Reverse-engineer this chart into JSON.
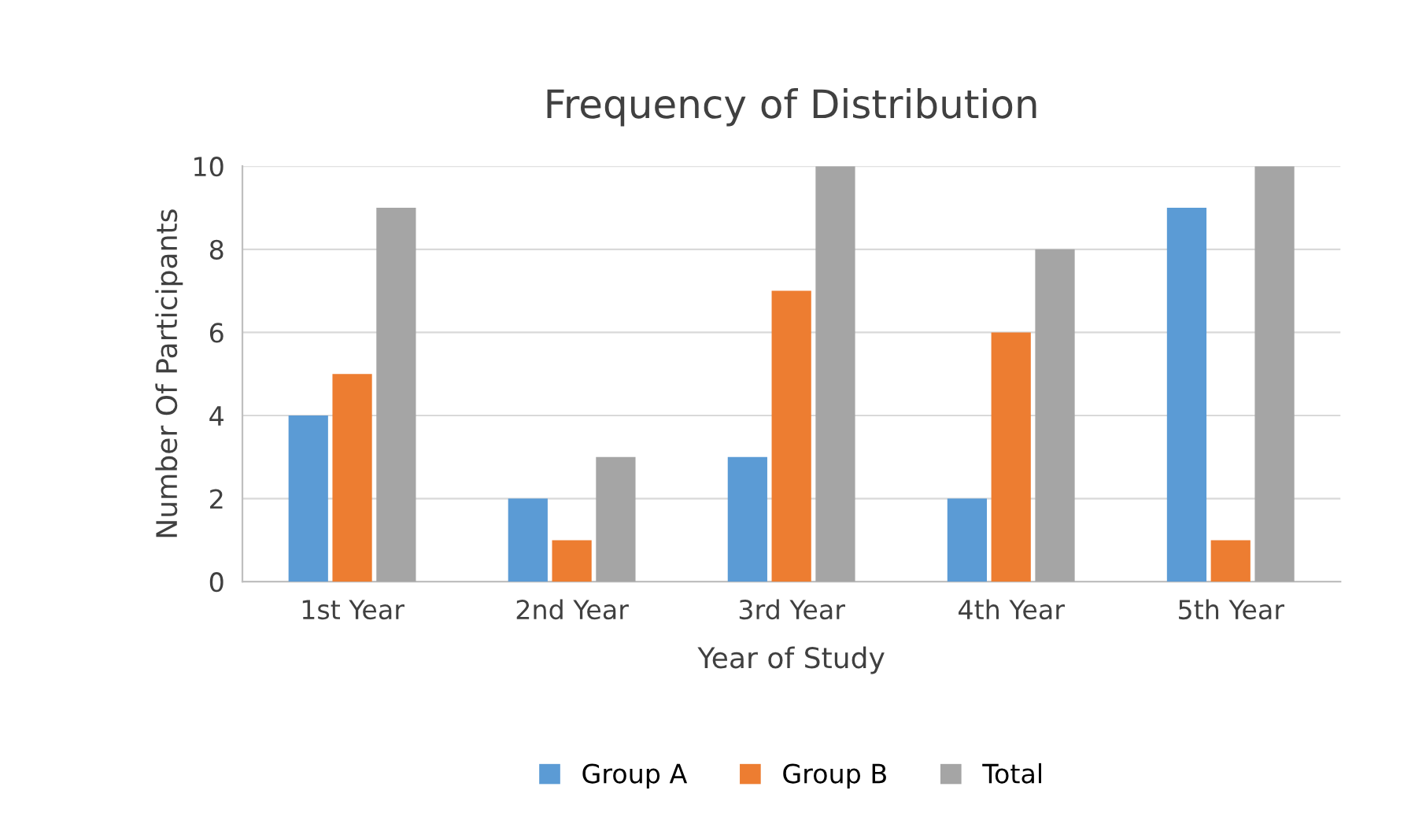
{
  "chart_data": {
    "type": "bar",
    "title": "Frequency of Distribution",
    "xlabel": "Year of Study",
    "ylabel": "Number Of Participants",
    "categories": [
      "1st Year",
      "2nd Year",
      "3rd Year",
      "4th Year",
      "5th Year"
    ],
    "series": [
      {
        "name": "Group A",
        "color": "#5b9bd5",
        "values": [
          4,
          2,
          3,
          2,
          9
        ]
      },
      {
        "name": "Group B",
        "color": "#ed7d31",
        "values": [
          5,
          1,
          7,
          6,
          1
        ]
      },
      {
        "name": "Total",
        "color": "#a5a5a5",
        "values": [
          9,
          3,
          10,
          8,
          10
        ]
      }
    ],
    "ylim": [
      0,
      10
    ],
    "yticks": [
      0,
      2,
      4,
      6,
      8,
      10
    ],
    "grid": "y",
    "legend": "bottom"
  }
}
